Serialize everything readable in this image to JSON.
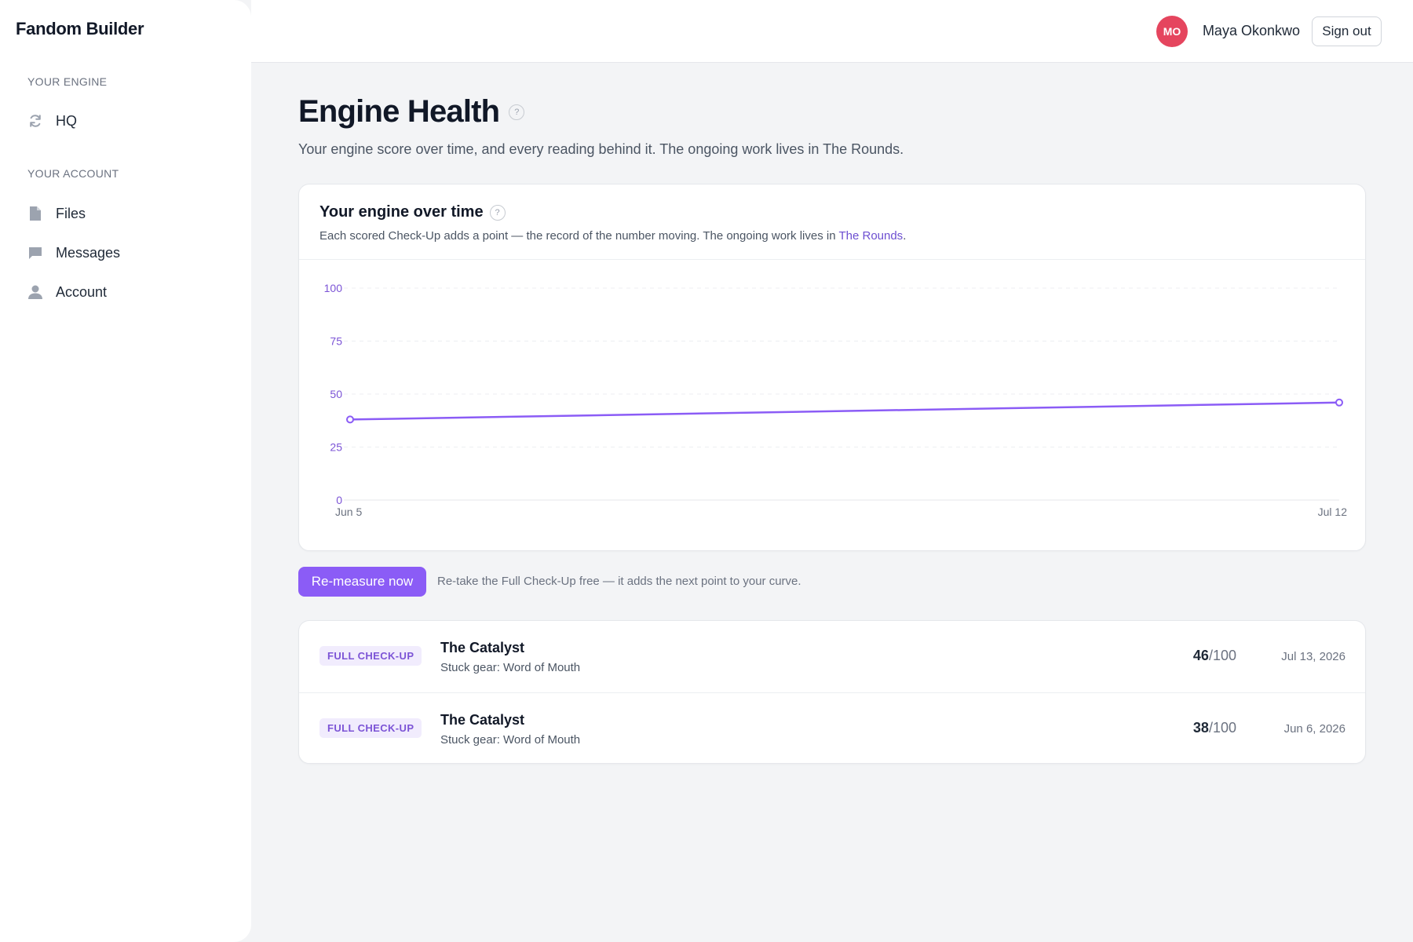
{
  "app": {
    "brand": "Fandom Builder"
  },
  "sidebar": {
    "sections": [
      {
        "label": "YOUR ENGINE",
        "items": [
          {
            "label": "HQ",
            "icon": "refresh-icon"
          }
        ]
      },
      {
        "label": "YOUR ACCOUNT",
        "items": [
          {
            "label": "Files",
            "icon": "file-icon"
          },
          {
            "label": "Messages",
            "icon": "message-icon"
          },
          {
            "label": "Account",
            "icon": "user-icon"
          }
        ]
      }
    ]
  },
  "header": {
    "avatar_initials": "MO",
    "avatar_color": "#e5455e",
    "user_name": "Maya Okonkwo",
    "sign_out_label": "Sign out"
  },
  "main": {
    "title": "Engine Health",
    "subtitle": "Your engine score over time, and every reading behind it. The ongoing work lives in The Rounds."
  },
  "chart_card": {
    "title": "Your engine over time",
    "desc_prefix": "Each scored Check-Up adds a point — the record of the number moving. The ongoing work lives in ",
    "desc_link": "The Rounds",
    "desc_suffix": "."
  },
  "chart_data": {
    "type": "line",
    "title": "Your engine over time",
    "x": [
      "Jun 5",
      "Jul 12"
    ],
    "series": [
      {
        "values": [
          38,
          46
        ]
      }
    ],
    "x_tick_labels": [
      "Jun 5",
      "Jul 12"
    ],
    "y_ticks": [
      0,
      25,
      50,
      75,
      100
    ],
    "ylim": [
      0,
      100
    ],
    "grid": true,
    "color": "#8b5cf6"
  },
  "actions": {
    "remeasure_label": "Re-measure now",
    "remeasure_note": "Re-take the Full Check-Up free — it adds the next point to your curve."
  },
  "readings": [
    {
      "badge": "FULL CHECK-UP",
      "title": "The Catalyst",
      "subtitle": "Stuck gear: Word of Mouth",
      "score": "46",
      "score_max": "/100",
      "date": "Jul 13, 2026"
    },
    {
      "badge": "FULL CHECK-UP",
      "title": "The Catalyst",
      "subtitle": "Stuck gear: Word of Mouth",
      "score": "38",
      "score_max": "/100",
      "date": "Jun 6, 2026"
    }
  ]
}
